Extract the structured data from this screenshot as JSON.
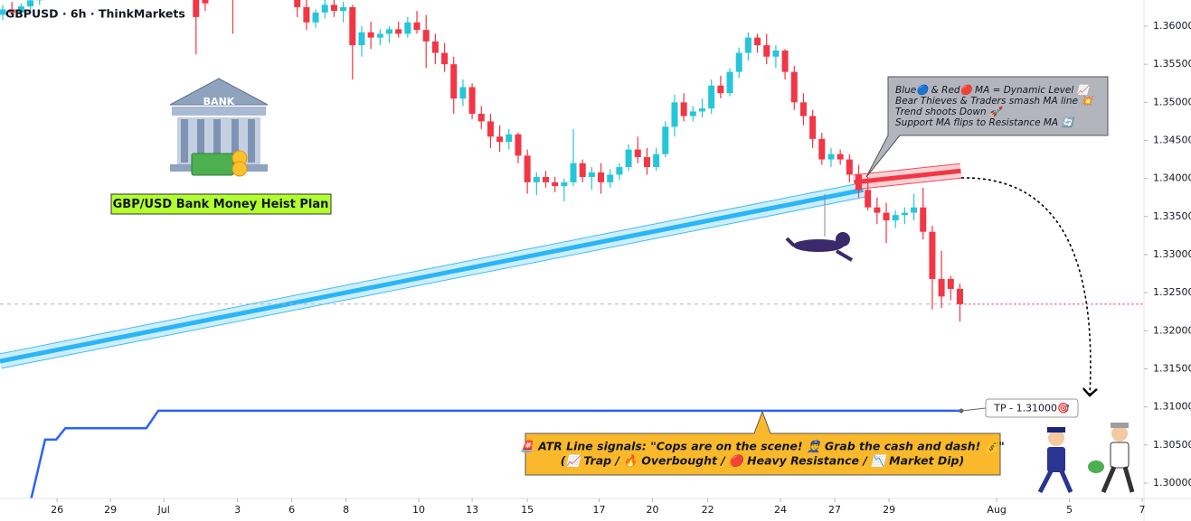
{
  "chart_data": {
    "type": "candlestick",
    "title": "GBPUSD · 6h · ThinkMarkets",
    "up_color": "#26c6da",
    "down_color": "#f23645",
    "xlim": [
      -0.3,
      124
    ],
    "ylim": [
      1.29798,
      1.36344
    ],
    "xticks": [
      {
        "value": 5.9,
        "label": "26"
      },
      {
        "value": 11.7,
        "label": "29"
      },
      {
        "value": 17.5,
        "label": "Jul"
      },
      {
        "value": 25.5,
        "label": "3"
      },
      {
        "value": 31.4,
        "label": "6"
      },
      {
        "value": 37.3,
        "label": "8"
      },
      {
        "value": 45.2,
        "label": "10"
      },
      {
        "value": 51.0,
        "label": "13"
      },
      {
        "value": 57.0,
        "label": "15"
      },
      {
        "value": 64.8,
        "label": "17"
      },
      {
        "value": 70.6,
        "label": "20"
      },
      {
        "value": 76.6,
        "label": "22"
      },
      {
        "value": 84.5,
        "label": "24"
      },
      {
        "value": 90.4,
        "label": "27"
      },
      {
        "value": 96.3,
        "label": "29"
      },
      {
        "value": 108.0,
        "label": "Aug"
      },
      {
        "value": 115.9,
        "label": "5"
      },
      {
        "value": 123.8,
        "label": "7"
      }
    ],
    "yticks": [
      {
        "value": 1.3,
        "label": "1.30000"
      },
      {
        "value": 1.305,
        "label": "1.30500"
      },
      {
        "value": 1.31,
        "label": "1.31000"
      },
      {
        "value": 1.315,
        "label": "1.31500"
      },
      {
        "value": 1.32,
        "label": "1.32000"
      },
      {
        "value": 1.325,
        "label": "1.32500"
      },
      {
        "value": 1.33,
        "label": "1.33000"
      },
      {
        "value": 1.335,
        "label": "1.33500"
      },
      {
        "value": 1.34,
        "label": "1.34000"
      },
      {
        "value": 1.345,
        "label": "1.34500"
      },
      {
        "value": 1.35,
        "label": "1.35000"
      },
      {
        "value": 1.355,
        "label": "1.35500"
      },
      {
        "value": 1.36,
        "label": "1.36000"
      }
    ],
    "x": [
      0,
      1,
      2,
      3,
      4,
      21,
      22,
      25,
      32,
      33,
      34,
      35,
      36,
      37,
      38,
      39,
      40,
      41,
      42,
      43,
      44,
      45,
      46,
      47,
      48,
      49,
      50,
      51,
      52,
      53,
      54,
      55,
      56,
      57,
      58,
      59,
      60,
      61,
      62,
      63,
      64,
      65,
      66,
      67,
      68,
      69,
      70,
      71,
      72,
      73,
      74,
      75,
      76,
      77,
      78,
      79,
      80,
      81,
      82,
      83,
      84,
      85,
      86,
      87,
      88,
      89,
      90,
      91,
      92,
      93,
      94,
      95,
      96,
      97,
      98,
      99,
      100,
      101,
      102,
      103,
      104
    ],
    "open": [
      1.3615,
      1.3622,
      1.3618,
      1.3626,
      1.3634,
      1.364,
      1.365,
      1.364,
      1.3645,
      1.3625,
      1.3605,
      1.3618,
      1.3628,
      1.362,
      1.3625,
      1.3575,
      1.3592,
      1.3585,
      1.359,
      1.3596,
      1.359,
      1.3605,
      1.3595,
      1.358,
      1.3565,
      1.355,
      1.3505,
      1.352,
      1.3485,
      1.3475,
      1.3455,
      1.3448,
      1.3458,
      1.343,
      1.3395,
      1.3402,
      1.3395,
      1.339,
      1.3395,
      1.342,
      1.3402,
      1.3408,
      1.3395,
      1.3405,
      1.3415,
      1.3438,
      1.3428,
      1.3415,
      1.3432,
      1.3468,
      1.35,
      1.3482,
      1.3488,
      1.3492,
      1.3522,
      1.3512,
      1.354,
      1.3565,
      1.3585,
      1.3575,
      1.356,
      1.3568,
      1.354,
      1.35,
      1.3482,
      1.3452,
      1.3425,
      1.3432,
      1.3425,
      1.3405,
      1.3385,
      1.3362,
      1.3355,
      1.3345,
      1.3352,
      1.3355,
      1.3362,
      1.333,
      1.3268,
      1.3268,
      1.3255
    ],
    "high": [
      1.3628,
      1.3632,
      1.363,
      1.364,
      1.3645,
      1.365,
      1.366,
      1.365,
      1.365,
      1.364,
      1.3622,
      1.3636,
      1.3635,
      1.3632,
      1.3628,
      1.36,
      1.3606,
      1.3596,
      1.36,
      1.3606,
      1.3612,
      1.362,
      1.3615,
      1.359,
      1.3578,
      1.356,
      1.353,
      1.3525,
      1.3495,
      1.3485,
      1.347,
      1.3465,
      1.346,
      1.3438,
      1.3408,
      1.341,
      1.3402,
      1.34,
      1.3465,
      1.3425,
      1.3415,
      1.342,
      1.3412,
      1.342,
      1.3445,
      1.3455,
      1.344,
      1.344,
      1.3475,
      1.351,
      1.3512,
      1.3495,
      1.3505,
      1.353,
      1.3535,
      1.3545,
      1.3572,
      1.3592,
      1.359,
      1.359,
      1.3575,
      1.357,
      1.3548,
      1.3512,
      1.349,
      1.346,
      1.344,
      1.3438,
      1.3432,
      1.3418,
      1.3402,
      1.3375,
      1.3368,
      1.3358,
      1.3362,
      1.338,
      1.3388,
      1.3338,
      1.3305,
      1.3272,
      1.3262
    ],
    "low": [
      1.3608,
      1.3616,
      1.3612,
      1.362,
      1.3628,
      1.3563,
      1.362,
      1.359,
      1.3612,
      1.3595,
      1.3598,
      1.361,
      1.3612,
      1.3605,
      1.353,
      1.356,
      1.357,
      1.3575,
      1.3578,
      1.3585,
      1.3585,
      1.359,
      1.3545,
      1.355,
      1.354,
      1.3485,
      1.3495,
      1.3478,
      1.3465,
      1.344,
      1.3435,
      1.3438,
      1.342,
      1.338,
      1.3378,
      1.3388,
      1.3382,
      1.337,
      1.339,
      1.3395,
      1.3385,
      1.338,
      1.3388,
      1.3398,
      1.341,
      1.342,
      1.3405,
      1.341,
      1.3428,
      1.3455,
      1.3475,
      1.3475,
      1.348,
      1.3485,
      1.3505,
      1.3508,
      1.3532,
      1.3555,
      1.3565,
      1.355,
      1.3545,
      1.353,
      1.349,
      1.347,
      1.344,
      1.3418,
      1.3415,
      1.3418,
      1.3395,
      1.3375,
      1.3358,
      1.334,
      1.3315,
      1.3335,
      1.334,
      1.3345,
      1.332,
      1.3228,
      1.323,
      1.324,
      1.3212
    ],
    "close": [
      1.3622,
      1.3618,
      1.3626,
      1.3634,
      1.364,
      1.3612,
      1.363,
      1.3635,
      1.3625,
      1.3605,
      1.3618,
      1.3628,
      1.362,
      1.3625,
      1.3575,
      1.3592,
      1.3585,
      1.359,
      1.3596,
      1.359,
      1.3605,
      1.3595,
      1.358,
      1.3565,
      1.355,
      1.3505,
      1.352,
      1.3485,
      1.3475,
      1.3455,
      1.3448,
      1.3458,
      1.343,
      1.3395,
      1.3402,
      1.3395,
      1.339,
      1.3395,
      1.342,
      1.3402,
      1.3408,
      1.3395,
      1.3405,
      1.3415,
      1.3438,
      1.3428,
      1.3415,
      1.3432,
      1.3468,
      1.35,
      1.3482,
      1.3488,
      1.3492,
      1.3522,
      1.3512,
      1.354,
      1.3565,
      1.3585,
      1.3575,
      1.356,
      1.3568,
      1.354,
      1.35,
      1.3482,
      1.3452,
      1.3425,
      1.3432,
      1.3425,
      1.3405,
      1.3385,
      1.3362,
      1.3355,
      1.3345,
      1.3352,
      1.3355,
      1.3362,
      1.333,
      1.3268,
      1.3245,
      1.3255,
      1.3235
    ],
    "moving_averages": [
      {
        "color": "#29b6f6",
        "x": [
          -0.3,
          93.5
        ],
        "values": [
          1.316,
          1.3385
        ]
      },
      {
        "color": "#f23645",
        "x": [
          92.5,
          104.1
        ],
        "values": [
          1.3395,
          1.341
        ]
      }
    ],
    "atr_line": {
      "color": "#2962ff",
      "x": [
        3.1,
        4.6,
        5.8,
        6.8,
        15.6,
        16.9,
        104.1
      ],
      "values": [
        1.298,
        1.3057,
        1.3057,
        1.3072,
        1.3072,
        1.3095,
        1.3095
      ]
    },
    "annotations": {
      "bank_label": "BANK",
      "heist_title": "GBP/USD Bank Money Heist Plan",
      "callout": [
        "Blue🔵 & Red🔴 MA = Dynamic Level 📈",
        "Bear Thieves & Traders smash MA line 💥",
        "Trend shoots Down 🚀",
        "Support MA flips to Resistance MA 🔄"
      ],
      "atr_box": [
        "🚨 ATR Line signals: \"Cops are on the scene! 👮 Grab the cash and dash! 💰\"",
        "(📈 Trap / 🔥 Overbought / 🔴 Heavy Resistance / 📉 Market Dip)"
      ],
      "tp_label": "TP - 1.31000🎯"
    }
  }
}
